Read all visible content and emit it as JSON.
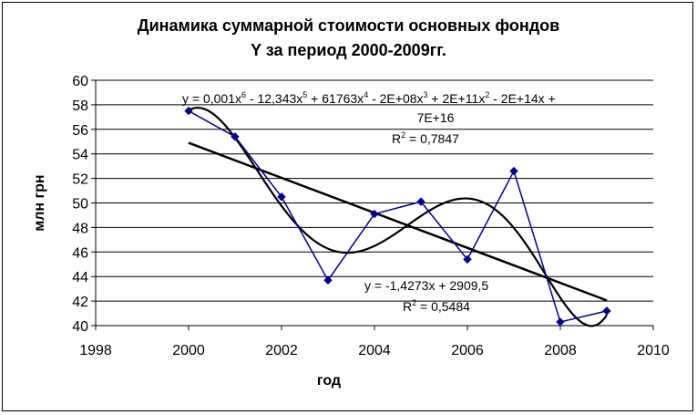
{
  "chart_data": {
    "type": "line",
    "title_line1": "Динамика суммарной стоимости основных фондов",
    "title_line2": "Y за период 2000-2009гг.",
    "xlabel": "год",
    "ylabel": "млн грн",
    "xlim": [
      1998,
      2010
    ],
    "ylim": [
      40,
      60
    ],
    "x_ticks": [
      "1998",
      "2000",
      "2002",
      "2004",
      "2006",
      "2008",
      "2010"
    ],
    "y_ticks": [
      "40",
      "42",
      "44",
      "46",
      "48",
      "50",
      "52",
      "54",
      "56",
      "58",
      "60"
    ],
    "grid": true,
    "colors": {
      "series": "#00008B",
      "trend": "#000000"
    },
    "series": [
      {
        "x": [
          2000,
          2001,
          2002,
          2003,
          2004,
          2005,
          2006,
          2007,
          2008,
          2009
        ],
        "values": [
          57.5,
          55.4,
          50.5,
          43.7,
          49.1,
          50.1,
          45.4,
          52.6,
          40.3,
          41.2
        ],
        "marker": "diamond"
      }
    ],
    "trendlines": [
      {
        "type": "polynomial-6",
        "equation": {
          "line1_parts": [
            "y = 0,001x",
            "6",
            " - 12,343x",
            "5",
            " + 61763x",
            "4",
            " - 2E+08x",
            "3",
            " + 2E+11x",
            "2",
            " - 2E+14x +"
          ],
          "line2": "7E+16",
          "r2_prefix": "R",
          "r2_sup": "2",
          "r2_suffix": " = 0,7847"
        }
      },
      {
        "type": "linear",
        "slope": -1.4273,
        "intercept": 2909.5,
        "equation": {
          "line1": "y = -1,4273x + 2909,5",
          "r2_prefix": "R",
          "r2_sup": "2",
          "r2_suffix": " = 0,5484"
        }
      }
    ]
  }
}
